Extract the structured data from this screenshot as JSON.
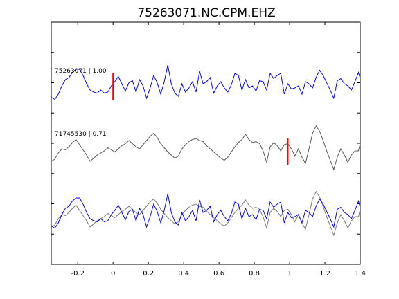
{
  "chart_data": {
    "type": "line",
    "title": "75263071.NC.CPM.EHZ",
    "xlabel": "",
    "ylabel": "",
    "xlim": [
      -0.35,
      1.4
    ],
    "x_ticks": [
      -0.2,
      0,
      0.2,
      0.4,
      0.6,
      0.8,
      1,
      1.2,
      1.4
    ],
    "x_tick_labels": [
      "-0.2",
      "0",
      "0.2",
      "0.4",
      "0.6",
      "0.8",
      "1",
      "1.2",
      "1.4"
    ],
    "grid": false,
    "colors": {
      "primary": "#0000ff",
      "secondary": "#555555",
      "pick": "#ff0000",
      "axes": "#000000"
    },
    "traces": [
      {
        "name": "75263071",
        "label": "75263071 | 1.00",
        "color": "#0000ff",
        "pick_time": 0.0,
        "x": [
          -0.35,
          -0.33,
          -0.31,
          -0.29,
          -0.27,
          -0.25,
          -0.23,
          -0.21,
          -0.19,
          -0.17,
          -0.15,
          -0.13,
          -0.11,
          -0.09,
          -0.07,
          -0.05,
          -0.03,
          -0.01,
          0.01,
          0.03,
          0.05,
          0.07,
          0.09,
          0.11,
          0.13,
          0.15,
          0.17,
          0.19,
          0.21,
          0.23,
          0.25,
          0.27,
          0.29,
          0.31,
          0.33,
          0.35,
          0.37,
          0.39,
          0.41,
          0.43,
          0.45,
          0.47,
          0.49,
          0.51,
          0.53,
          0.55,
          0.57,
          0.59,
          0.61,
          0.63,
          0.65,
          0.67,
          0.69,
          0.71,
          0.73,
          0.75,
          0.77,
          0.79,
          0.81,
          0.83,
          0.85,
          0.87,
          0.89,
          0.91,
          0.93,
          0.95,
          0.97,
          0.99,
          1.01,
          1.03,
          1.05,
          1.07,
          1.09,
          1.11,
          1.13,
          1.15,
          1.17,
          1.19,
          1.21,
          1.23,
          1.25,
          1.27,
          1.29,
          1.31,
          1.33,
          1.35,
          1.37,
          1.39,
          1.4
        ],
        "y": [
          -0.45,
          -0.55,
          -0.3,
          0.1,
          0.4,
          0.5,
          0.75,
          0.9,
          0.9,
          0.6,
          0.2,
          -0.1,
          -0.2,
          -0.25,
          -0.1,
          -0.25,
          -0.2,
          0.1,
          0.3,
          0.55,
          0.2,
          -0.15,
          0.25,
          0.35,
          -0.2,
          0.4,
          0.1,
          -0.5,
          0.0,
          0.6,
          0.25,
          -0.3,
          0.3,
          1.1,
          0.2,
          -0.25,
          -0.4,
          0.2,
          -0.2,
          0.0,
          0.3,
          -0.2,
          0.8,
          0.2,
          0.3,
          0.5,
          -0.25,
          0.1,
          0.3,
          0.0,
          -0.2,
          0.15,
          0.7,
          0.6,
          -0.1,
          0.4,
          0.0,
          0.1,
          -0.15,
          0.35,
          0.3,
          -0.1,
          0.7,
          0.45,
          0.6,
          0.7,
          -0.3,
          0.2,
          -0.05,
          0.0,
          0.1,
          -0.3,
          0.3,
          0.2,
          0.0,
          0.5,
          0.85,
          0.6,
          0.25,
          -0.1,
          -0.5,
          0.35,
          0.45,
          0.2,
          0.1,
          -0.1,
          0.3,
          0.75,
          0.45
        ]
      },
      {
        "name": "71745530",
        "label": "71745530 | 0.71",
        "color": "#555555",
        "pick_time": 0.99,
        "x": [
          -0.35,
          -0.33,
          -0.31,
          -0.29,
          -0.27,
          -0.25,
          -0.23,
          -0.21,
          -0.19,
          -0.17,
          -0.15,
          -0.13,
          -0.11,
          -0.09,
          -0.07,
          -0.05,
          -0.03,
          -0.01,
          0.01,
          0.03,
          0.05,
          0.07,
          0.09,
          0.11,
          0.13,
          0.15,
          0.17,
          0.19,
          0.21,
          0.23,
          0.25,
          0.27,
          0.29,
          0.31,
          0.33,
          0.35,
          0.37,
          0.39,
          0.41,
          0.43,
          0.45,
          0.47,
          0.49,
          0.51,
          0.53,
          0.55,
          0.57,
          0.59,
          0.61,
          0.63,
          0.65,
          0.67,
          0.69,
          0.71,
          0.73,
          0.75,
          0.77,
          0.79,
          0.81,
          0.83,
          0.85,
          0.87,
          0.89,
          0.91,
          0.93,
          0.95,
          0.97,
          0.99,
          1.01,
          1.03,
          1.05,
          1.07,
          1.09,
          1.11,
          1.13,
          1.15,
          1.17,
          1.19,
          1.21,
          1.23,
          1.25,
          1.27,
          1.29,
          1.31,
          1.33,
          1.35,
          1.37,
          1.39,
          1.4
        ],
        "y": [
          -0.5,
          -0.4,
          -0.1,
          0.1,
          0.05,
          0.2,
          0.4,
          0.55,
          0.3,
          0.05,
          -0.2,
          -0.5,
          -0.35,
          -0.2,
          -0.1,
          0.0,
          0.15,
          0.05,
          -0.05,
          0.1,
          0.25,
          0.35,
          0.5,
          0.35,
          0.2,
          0.1,
          0.3,
          0.5,
          0.7,
          0.85,
          0.65,
          0.35,
          0.15,
          -0.05,
          -0.2,
          -0.35,
          -0.25,
          0.1,
          0.3,
          0.45,
          0.55,
          0.6,
          0.5,
          0.45,
          0.25,
          0.1,
          -0.05,
          -0.2,
          -0.35,
          -0.45,
          -0.3,
          -0.05,
          0.2,
          0.4,
          0.55,
          0.8,
          0.55,
          0.4,
          0.45,
          0.35,
          0.0,
          -0.55,
          0.2,
          0.4,
          0.25,
          0.0,
          0.3,
          0.35,
          0.1,
          -0.25,
          0.1,
          -0.3,
          -0.6,
          0.1,
          0.85,
          1.2,
          0.95,
          0.5,
          0.0,
          -0.45,
          -0.9,
          -0.3,
          0.1,
          -0.2,
          -0.55,
          -0.2,
          0.0,
          0.0,
          0.35
        ]
      }
    ]
  },
  "figure": {
    "title": "75263071.NC.CPM.EHZ"
  }
}
